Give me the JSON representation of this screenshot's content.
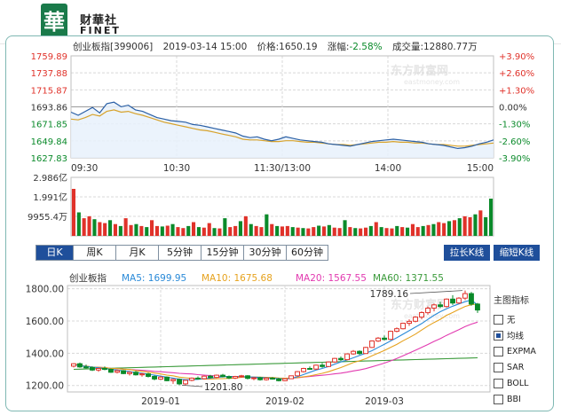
{
  "header": {
    "logo_cn": "财華社",
    "logo_en": "FINET",
    "logo_char": "華"
  },
  "info": {
    "name_code": "创业板指[399006]",
    "datetime": "2019-03-14 15:00",
    "price_label": "价格:",
    "price": "1650.19",
    "change_label": "涨幅:",
    "change": "-2.58%",
    "volume_label": "成交量:",
    "volume": "12880.77万"
  },
  "watermark": {
    "text_cn": "东方财富网",
    "text_en": "eastmoney.com"
  },
  "colors": {
    "up": "#e0322a",
    "down": "#0a8a2a",
    "price_line": "#2a5fa5",
    "avg_line": "#d7a22a",
    "ma5": "#2a8ad8",
    "ma10": "#e6a21e",
    "ma20": "#e23ab0",
    "ma60": "#3a9a3a",
    "accent": "#1f4f9b"
  },
  "chart_data": [
    {
      "type": "line",
      "title": "",
      "x_ticks": [
        "09:30",
        "10:30",
        "11:30/13:00",
        "14:00",
        "15:00"
      ],
      "y_ticks_left": [
        "1759.89",
        "1737.88",
        "1715.87",
        "1693.86",
        "1671.85",
        "1649.84",
        "1627.83"
      ],
      "y_ticks_right": [
        "+3.90%",
        "+2.60%",
        "+1.30%",
        "0.00%",
        "-1.30%",
        "-2.60%",
        "-3.90%"
      ],
      "ylim": [
        1627.83,
        1759.89
      ],
      "series": [
        {
          "values": [
            1687,
            1683,
            1688,
            1693,
            1686,
            1698,
            1700,
            1694,
            1696,
            1690,
            1688,
            1684,
            1680,
            1678,
            1676,
            1675,
            1674,
            1671,
            1670,
            1668,
            1666,
            1664,
            1662,
            1660,
            1656,
            1654,
            1655,
            1652,
            1650,
            1652,
            1655,
            1653,
            1651,
            1650,
            1649,
            1648,
            1646,
            1645,
            1644,
            1643,
            1645,
            1647,
            1649,
            1650,
            1651,
            1652,
            1651,
            1650,
            1649,
            1648,
            1646,
            1645,
            1644,
            1642,
            1640,
            1641,
            1643,
            1646,
            1648,
            1651
          ]
        },
        {
          "values": [
            1678,
            1677,
            1680,
            1684,
            1682,
            1688,
            1690,
            1687,
            1688,
            1685,
            1683,
            1680,
            1677,
            1674,
            1672,
            1670,
            1668,
            1666,
            1664,
            1663,
            1661,
            1659,
            1657,
            1655,
            1652,
            1651,
            1651,
            1650,
            1649,
            1649,
            1650,
            1650,
            1649,
            1648,
            1648,
            1647,
            1646,
            1645,
            1645,
            1644,
            1645,
            1646,
            1647,
            1648,
            1648,
            1649,
            1648,
            1648,
            1647,
            1647,
            1646,
            1645,
            1645,
            1644,
            1643,
            1643,
            1644,
            1645,
            1646,
            1647
          ]
        }
      ]
    },
    {
      "type": "bar",
      "title": "",
      "y_ticks": [
        "2.986亿",
        "1.991亿",
        "9955.4万"
      ],
      "ylim": [
        0,
        29860
      ],
      "values": [
        24000,
        12000,
        9000,
        10000,
        8500,
        7000,
        6500,
        8000,
        6000,
        5000,
        9000,
        5500,
        6000,
        5000,
        4500,
        8000,
        5000,
        4800,
        5200,
        6000,
        4500,
        4000,
        5000,
        7000,
        4500,
        4200,
        6500,
        4000,
        3800,
        9000,
        4500,
        5000,
        7500,
        10000,
        6000,
        5000,
        4500,
        11000,
        6000,
        5000,
        4800,
        5000,
        4500,
        4200,
        4000,
        3800,
        4500,
        5200,
        4800,
        5500,
        4200,
        4000,
        8000,
        4500,
        4000,
        3800,
        4200,
        5000,
        7000,
        4500,
        4000,
        3800,
        5000,
        4500,
        4200,
        6000,
        4500,
        5000,
        5500,
        6000,
        7000,
        6500,
        7500,
        8000,
        9000,
        10000,
        9500,
        11000,
        13000,
        9500,
        19000
      ],
      "colors": [
        "up",
        "down",
        "up",
        "up",
        "down",
        "up",
        "up",
        "down",
        "up",
        "down",
        "up",
        "up",
        "down",
        "up",
        "down",
        "up",
        "up",
        "down",
        "up",
        "down",
        "up",
        "up",
        "down",
        "up",
        "down",
        "up",
        "up",
        "down",
        "up",
        "down",
        "up",
        "up",
        "down",
        "up",
        "down",
        "up",
        "up",
        "down",
        "up",
        "down",
        "up",
        "up",
        "down",
        "up",
        "down",
        "up",
        "up",
        "down",
        "up",
        "down",
        "up",
        "up",
        "down",
        "up",
        "down",
        "up",
        "up",
        "down",
        "up",
        "down",
        "up",
        "up",
        "down",
        "up",
        "down",
        "up",
        "up",
        "down",
        "up",
        "down",
        "up",
        "up",
        "down",
        "up",
        "down",
        "up",
        "up",
        "down",
        "up",
        "down",
        "down"
      ]
    },
    {
      "type": "candlestick",
      "title": "创业板指",
      "ylim": [
        1160,
        1820
      ],
      "y_ticks": [
        "1800.00",
        "1600.00",
        "1400.00",
        "1200.00"
      ],
      "x_ticks": [
        "2019-01",
        "2019-02",
        "2019-03"
      ],
      "legend": [
        "MA5: 1699.95",
        "MA10: 1675.68",
        "MA20: 1567.55",
        "MA60: 1371.55"
      ],
      "annotations": [
        "1789.16",
        "1201.80"
      ],
      "ohlc": [
        [
          1320,
          1338,
          1312,
          1335
        ],
        [
          1335,
          1342,
          1310,
          1315
        ],
        [
          1315,
          1330,
          1305,
          1312
        ],
        [
          1312,
          1318,
          1290,
          1296
        ],
        [
          1296,
          1310,
          1285,
          1306
        ],
        [
          1306,
          1318,
          1295,
          1300
        ],
        [
          1300,
          1305,
          1278,
          1282
        ],
        [
          1282,
          1298,
          1275,
          1292
        ],
        [
          1292,
          1296,
          1270,
          1274
        ],
        [
          1274,
          1286,
          1262,
          1282
        ],
        [
          1282,
          1290,
          1262,
          1266
        ],
        [
          1266,
          1278,
          1255,
          1272
        ],
        [
          1272,
          1278,
          1250,
          1256
        ],
        [
          1256,
          1262,
          1232,
          1240
        ],
        [
          1240,
          1258,
          1235,
          1252
        ],
        [
          1252,
          1256,
          1226,
          1230
        ],
        [
          1230,
          1242,
          1210,
          1238
        ],
        [
          1238,
          1244,
          1202,
          1210
        ],
        [
          1210,
          1236,
          1202,
          1232
        ],
        [
          1232,
          1250,
          1226,
          1246
        ],
        [
          1246,
          1256,
          1236,
          1242
        ],
        [
          1242,
          1262,
          1238,
          1258
        ],
        [
          1258,
          1266,
          1245,
          1250
        ],
        [
          1250,
          1268,
          1246,
          1264
        ],
        [
          1264,
          1272,
          1250,
          1255
        ],
        [
          1255,
          1262,
          1240,
          1246
        ],
        [
          1246,
          1260,
          1240,
          1256
        ],
        [
          1256,
          1266,
          1248,
          1260
        ],
        [
          1260,
          1264,
          1238,
          1244
        ],
        [
          1244,
          1252,
          1232,
          1248
        ],
        [
          1248,
          1254,
          1230,
          1236
        ],
        [
          1236,
          1250,
          1230,
          1246
        ],
        [
          1246,
          1252,
          1236,
          1240
        ],
        [
          1240,
          1248,
          1225,
          1230
        ],
        [
          1230,
          1246,
          1226,
          1242
        ],
        [
          1242,
          1262,
          1240,
          1260
        ],
        [
          1260,
          1290,
          1258,
          1286
        ],
        [
          1286,
          1310,
          1280,
          1306
        ],
        [
          1306,
          1318,
          1298,
          1302
        ],
        [
          1302,
          1330,
          1298,
          1326
        ],
        [
          1326,
          1340,
          1310,
          1318
        ],
        [
          1318,
          1350,
          1314,
          1346
        ],
        [
          1346,
          1372,
          1340,
          1368
        ],
        [
          1368,
          1380,
          1352,
          1360
        ],
        [
          1360,
          1400,
          1356,
          1396
        ],
        [
          1396,
          1420,
          1390,
          1412
        ],
        [
          1412,
          1418,
          1390,
          1398
        ],
        [
          1398,
          1440,
          1396,
          1436
        ],
        [
          1436,
          1480,
          1432,
          1476
        ],
        [
          1476,
          1500,
          1470,
          1494
        ],
        [
          1494,
          1510,
          1480,
          1486
        ],
        [
          1486,
          1540,
          1482,
          1536
        ],
        [
          1536,
          1560,
          1530,
          1552
        ],
        [
          1552,
          1590,
          1548,
          1586
        ],
        [
          1586,
          1610,
          1570,
          1598
        ],
        [
          1598,
          1630,
          1592,
          1624
        ],
        [
          1624,
          1660,
          1610,
          1652
        ],
        [
          1652,
          1690,
          1640,
          1680
        ],
        [
          1680,
          1708,
          1660,
          1700
        ],
        [
          1700,
          1720,
          1680,
          1690
        ],
        [
          1690,
          1740,
          1684,
          1736
        ],
        [
          1736,
          1760,
          1700,
          1712
        ],
        [
          1712,
          1748,
          1706,
          1742
        ],
        [
          1742,
          1789.16,
          1730,
          1770
        ],
        [
          1770,
          1780,
          1695,
          1705
        ],
        [
          1705,
          1712,
          1650,
          1668
        ]
      ],
      "ma5": [
        1328,
        1324,
        1318,
        1314,
        1310,
        1306,
        1300,
        1296,
        1291,
        1286,
        1280,
        1276,
        1270,
        1264,
        1258,
        1252,
        1246,
        1240,
        1236,
        1236,
        1238,
        1242,
        1246,
        1250,
        1254,
        1256,
        1256,
        1255,
        1254,
        1252,
        1250,
        1248,
        1246,
        1242,
        1240,
        1244,
        1254,
        1268,
        1282,
        1296,
        1306,
        1318,
        1332,
        1346,
        1358,
        1372,
        1386,
        1400,
        1416,
        1436,
        1456,
        1476,
        1496,
        1518,
        1540,
        1562,
        1584,
        1610,
        1636,
        1658,
        1676,
        1692,
        1706,
        1720,
        1730,
        1700
      ]
    }
  ],
  "period_tabs": [
    "日K",
    "周K",
    "月K",
    "5分钟",
    "15分钟",
    "30分钟",
    "60分钟"
  ],
  "buttons": {
    "stretch": "拉长K线",
    "shorten": "缩短K线"
  },
  "indicators": {
    "title": "主图指标",
    "items": [
      {
        "label": "无",
        "checked": false
      },
      {
        "label": "均线",
        "checked": true
      },
      {
        "label": "EXPMA",
        "checked": false
      },
      {
        "label": "SAR",
        "checked": false
      },
      {
        "label": "BOLL",
        "checked": false
      },
      {
        "label": "BBI",
        "checked": false
      }
    ]
  }
}
